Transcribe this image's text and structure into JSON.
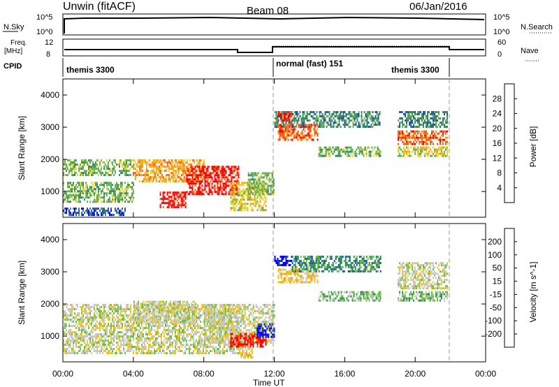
{
  "header": {
    "station": "Unwin (fitACF)",
    "beam": "Beam 08",
    "date": "06/Jan/2016"
  },
  "strips": {
    "nsky_label": "N.Sky",
    "nsky_top": "10^5",
    "nsky_bottom": "10^0",
    "nsearch_label": "N.Search",
    "nsearch_top": "10^5",
    "nsearch_bottom": "10^0",
    "freq_label": "Freq.",
    "freq_unit": "[MHz]",
    "freq_top": "12",
    "freq_bottom": "8",
    "nave_label": "Nave",
    "nave_top": "60",
    "nave_bottom": "0",
    "cpid_label": "CPID",
    "cpid_segments": [
      {
        "label": "themis 3300",
        "start_hour": 0,
        "end_hour": 12
      },
      {
        "label": "normal (fast) 151",
        "start_hour": 12,
        "end_hour": 22
      },
      {
        "label": "themis 3300",
        "start_hour": 22,
        "end_hour": 24
      }
    ]
  },
  "x_axis": {
    "label": "Time UT",
    "ticks": [
      "00:00",
      "04:00",
      "08:00",
      "12:00",
      "16:00",
      "20:00",
      "00:00"
    ],
    "range_hours": [
      0,
      24
    ]
  },
  "colors": {
    "power_scale": [
      "#0000ff",
      "#2255a8",
      "#3b8a5c",
      "#5fb35a",
      "#f0d020",
      "#ff9a00",
      "#ff5a10",
      "#ff0000"
    ],
    "velocity_scale": [
      "#ff0000",
      "#ff5a00",
      "#ff9a00",
      "#f2c400",
      "#c8c8c8",
      "#6cc040",
      "#2e8a5c",
      "#2050a0",
      "#0000ff"
    ]
  },
  "chart_data": [
    {
      "type": "heatmap",
      "name": "power",
      "ylabel": "Slant Range [km]",
      "ylim": [
        200,
        4500
      ],
      "y_ticks": [
        "1000",
        "2000",
        "3000",
        "4000"
      ],
      "colorbar_label": "Power [dB]",
      "colorbar_ticks": [
        "4",
        "8",
        "12",
        "16",
        "20",
        "24",
        "28"
      ],
      "regions": [
        {
          "t0": 0.0,
          "t1": 4.0,
          "r0": 700,
          "r1": 1300,
          "level": 3
        },
        {
          "t0": 0.0,
          "t1": 4.0,
          "r0": 1500,
          "r1": 2000,
          "level": 3
        },
        {
          "t0": 0.0,
          "t1": 3.5,
          "r0": 300,
          "r1": 500,
          "level": 1
        },
        {
          "t0": 4.0,
          "t1": 8.0,
          "r0": 1300,
          "r1": 2000,
          "level": 5
        },
        {
          "t0": 5.5,
          "t1": 7.0,
          "r0": 500,
          "r1": 1000,
          "level": 7
        },
        {
          "t0": 7.0,
          "t1": 10.0,
          "r0": 900,
          "r1": 1800,
          "level": 7
        },
        {
          "t0": 9.5,
          "t1": 11.5,
          "r0": 400,
          "r1": 1300,
          "level": 4
        },
        {
          "t0": 10.5,
          "t1": 12.0,
          "r0": 900,
          "r1": 1600,
          "level": 3
        },
        {
          "t0": 12.0,
          "t1": 18.0,
          "r0": 3000,
          "r1": 3500,
          "level": 2
        },
        {
          "t0": 12.2,
          "t1": 14.5,
          "r0": 2600,
          "r1": 3100,
          "level": 6
        },
        {
          "t0": 12.2,
          "t1": 13.0,
          "r0": 3200,
          "r1": 3500,
          "level": 7
        },
        {
          "t0": 14.5,
          "t1": 18.0,
          "r0": 2100,
          "r1": 2400,
          "level": 3
        },
        {
          "t0": 19.0,
          "t1": 21.8,
          "r0": 3000,
          "r1": 3500,
          "level": 2
        },
        {
          "t0": 19.0,
          "t1": 21.8,
          "r0": 2500,
          "r1": 2900,
          "level": 6
        },
        {
          "t0": 19.0,
          "t1": 21.8,
          "r0": 2100,
          "r1": 2400,
          "level": 4
        }
      ]
    },
    {
      "type": "heatmap",
      "name": "velocity",
      "ylabel": "Slant Range [km]",
      "ylim": [
        200,
        4500
      ],
      "y_ticks": [
        "1000",
        "2000",
        "3000",
        "4000"
      ],
      "colorbar_label": "Velocity [m s^-1]",
      "colorbar_ticks": [
        "-200",
        "-100",
        "-50",
        "-15",
        "15",
        "50",
        "100",
        "200"
      ],
      "regions": [
        {
          "t0": 0.0,
          "t1": 10.0,
          "r0": 500,
          "r1": 2000,
          "level": 4
        },
        {
          "t0": 4.0,
          "t1": 7.5,
          "r0": 1400,
          "r1": 2100,
          "level": 4
        },
        {
          "t0": 8.0,
          "t1": 12.0,
          "r0": 800,
          "r1": 2000,
          "level": 4
        },
        {
          "t0": 9.5,
          "t1": 11.5,
          "r0": 700,
          "r1": 1100,
          "level": 0
        },
        {
          "t0": 10.0,
          "t1": 10.8,
          "r0": 350,
          "r1": 700,
          "level": 3
        },
        {
          "t0": 11.0,
          "t1": 12.0,
          "r0": 1000,
          "r1": 1400,
          "level": 8
        },
        {
          "t0": 12.0,
          "t1": 13.0,
          "r0": 3200,
          "r1": 3500,
          "level": 8
        },
        {
          "t0": 12.2,
          "t1": 14.5,
          "r0": 2700,
          "r1": 3100,
          "level": 3
        },
        {
          "t0": 13.0,
          "t1": 18.0,
          "r0": 3000,
          "r1": 3500,
          "level": 6
        },
        {
          "t0": 14.5,
          "t1": 18.0,
          "r0": 2100,
          "r1": 2400,
          "level": 5
        },
        {
          "t0": 19.0,
          "t1": 21.8,
          "r0": 2500,
          "r1": 3300,
          "level": 4
        },
        {
          "t0": 19.0,
          "t1": 21.8,
          "r0": 2100,
          "r1": 2400,
          "level": 5
        }
      ]
    }
  ]
}
